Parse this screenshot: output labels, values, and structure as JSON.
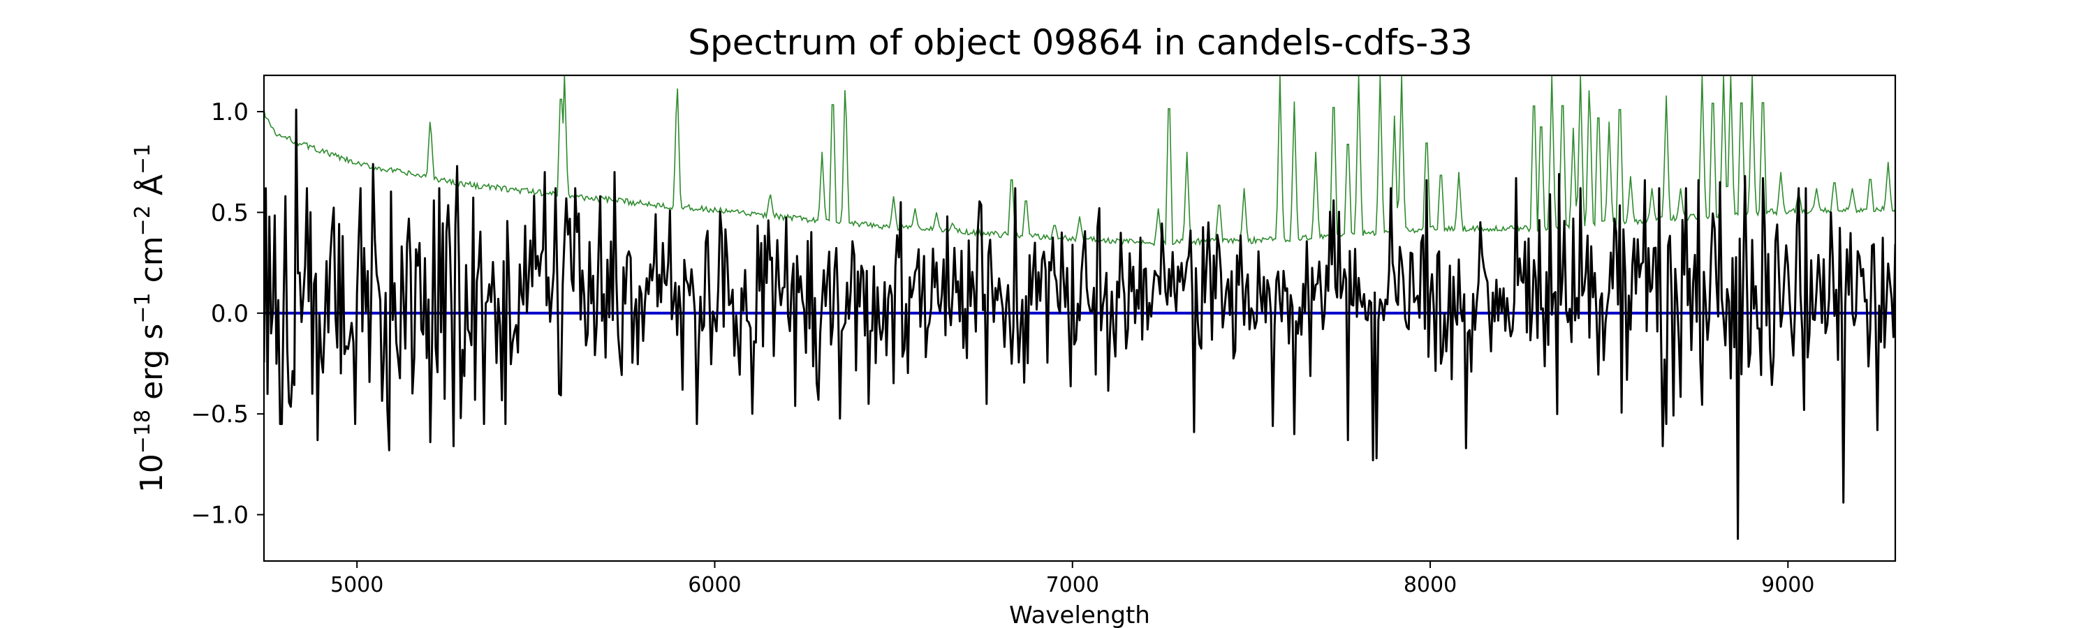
{
  "chart_data": {
    "type": "line",
    "title": "Spectrum of object 09864 in candels-cdfs-33",
    "xlabel": "Wavelength",
    "ylabel_parts": [
      "10",
      "−18",
      " erg s",
      "−1",
      " cm",
      "−2",
      " Å",
      "−1"
    ],
    "xlim": [
      4740,
      9300
    ],
    "ylim": [
      -1.23,
      1.18
    ],
    "xticks": [
      5000,
      6000,
      7000,
      8000,
      9000
    ],
    "xtick_labels": [
      "5000",
      "6000",
      "7000",
      "8000",
      "9000"
    ],
    "yticks": [
      1.0,
      0.5,
      0.0,
      -0.5,
      -1.0
    ],
    "ytick_labels": [
      "1.0",
      "0.5",
      "0.0",
      "−0.5",
      "−1.0"
    ],
    "grid": false,
    "series": [
      {
        "color": "#000000",
        "role": "flux",
        "x_start": 4740,
        "x_end": 9300,
        "x_step": 5,
        "spikes": [
          [
            4830,
            1.01
          ],
          [
            4875,
            -0.4
          ],
          [
            4890,
            -0.63
          ],
          [
            5045,
            0.74
          ],
          [
            5090,
            -0.68
          ],
          [
            5205,
            -0.64
          ],
          [
            5280,
            0.73
          ],
          [
            5270,
            -0.66
          ],
          [
            5330,
            -0.43
          ],
          [
            5525,
            0.7
          ],
          [
            5565,
            -0.4
          ],
          [
            5720,
            0.7
          ],
          [
            5680,
            0.58
          ],
          [
            5875,
            0.51
          ],
          [
            5910,
            -0.38
          ],
          [
            6150,
            0.46
          ],
          [
            6290,
            -0.43
          ],
          [
            6430,
            -0.45
          ],
          [
            6610,
            0.32
          ],
          [
            6970,
            0.4
          ],
          [
            7340,
            -0.59
          ],
          [
            7330,
            0.41
          ],
          [
            7560,
            -0.56
          ],
          [
            7620,
            -0.6
          ],
          [
            7730,
            0.56
          ],
          [
            7770,
            -0.63
          ],
          [
            7840,
            -0.73
          ],
          [
            7850,
            -0.72
          ],
          [
            7890,
            0.62
          ],
          [
            7990,
            0.66
          ],
          [
            8100,
            -0.67
          ],
          [
            8240,
            0.67
          ],
          [
            8360,
            0.69
          ],
          [
            8420,
            0.62
          ],
          [
            8600,
            0.66
          ],
          [
            8650,
            -0.66
          ],
          [
            8750,
            0.66
          ],
          [
            8810,
            0.65
          ],
          [
            8860,
            -1.12
          ],
          [
            8880,
            0.68
          ],
          [
            8930,
            0.67
          ],
          [
            9155,
            -0.94
          ],
          [
            9120,
            0.5
          ],
          [
            9250,
            -0.58
          ]
        ]
      },
      {
        "color": "#2e8b2e",
        "role": "error",
        "base_points": [
          [
            4740,
            1.0
          ],
          [
            4770,
            0.89
          ],
          [
            4800,
            0.87
          ],
          [
            5000,
            0.74
          ],
          [
            5300,
            0.64
          ],
          [
            5600,
            0.58
          ],
          [
            6000,
            0.51
          ],
          [
            6400,
            0.44
          ],
          [
            6800,
            0.39
          ],
          [
            7200,
            0.35
          ],
          [
            7500,
            0.36
          ],
          [
            7700,
            0.38
          ],
          [
            8000,
            0.42
          ],
          [
            8300,
            0.42
          ],
          [
            8600,
            0.46
          ],
          [
            8900,
            0.5
          ],
          [
            9300,
            0.52
          ]
        ],
        "peaks": [
          [
            5205,
            0.98
          ],
          [
            5570,
            1.18
          ],
          [
            5580,
            1.18
          ],
          [
            5895,
            1.18
          ],
          [
            6155,
            0.6
          ],
          [
            6300,
            0.8
          ],
          [
            6330,
            1.18
          ],
          [
            6365,
            1.18
          ],
          [
            6500,
            0.58
          ],
          [
            6560,
            0.52
          ],
          [
            6620,
            0.5
          ],
          [
            6665,
            0.45
          ],
          [
            6830,
            0.73
          ],
          [
            6870,
            0.6
          ],
          [
            6950,
            0.45
          ],
          [
            7020,
            0.48
          ],
          [
            7240,
            0.52
          ],
          [
            7270,
            1.18
          ],
          [
            7320,
            0.8
          ],
          [
            7410,
            0.58
          ],
          [
            7480,
            0.62
          ],
          [
            7580,
            1.18
          ],
          [
            7620,
            1.05
          ],
          [
            7680,
            0.8
          ],
          [
            7730,
            1.18
          ],
          [
            7770,
            0.95
          ],
          [
            7800,
            1.18
          ],
          [
            7860,
            1.18
          ],
          [
            7900,
            0.98
          ],
          [
            7920,
            1.18
          ],
          [
            7990,
            0.95
          ],
          [
            8030,
            0.75
          ],
          [
            8080,
            0.7
          ],
          [
            8290,
            1.18
          ],
          [
            8310,
            1.05
          ],
          [
            8340,
            1.18
          ],
          [
            8370,
            1.18
          ],
          [
            8400,
            0.92
          ],
          [
            8420,
            1.18
          ],
          [
            8445,
            1.18
          ],
          [
            8470,
            1.1
          ],
          [
            8500,
            0.95
          ],
          [
            8530,
            1.15
          ],
          [
            8560,
            0.68
          ],
          [
            8620,
            0.62
          ],
          [
            8660,
            1.08
          ],
          [
            8700,
            0.62
          ],
          [
            8760,
            1.18
          ],
          [
            8790,
            1.18
          ],
          [
            8820,
            1.18
          ],
          [
            8840,
            1.18
          ],
          [
            8870,
            1.18
          ],
          [
            8900,
            1.18
          ],
          [
            8930,
            1.18
          ],
          [
            8980,
            0.7
          ],
          [
            9030,
            0.6
          ],
          [
            9080,
            0.62
          ],
          [
            9130,
            0.68
          ],
          [
            9180,
            0.62
          ],
          [
            9230,
            0.7
          ],
          [
            9280,
            0.75
          ]
        ]
      },
      {
        "color": "#0000cc",
        "role": "model",
        "value": 0.0
      }
    ]
  }
}
